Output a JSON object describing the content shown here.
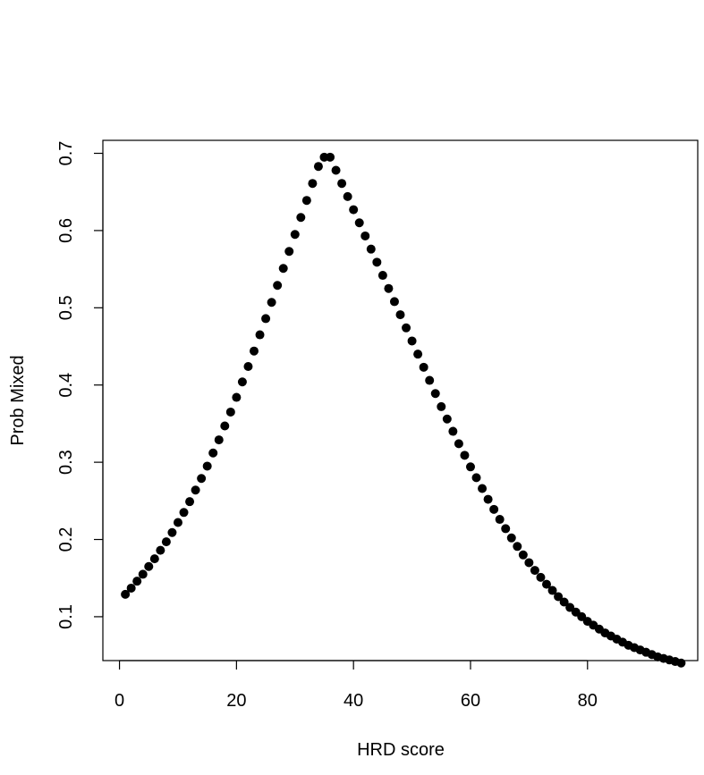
{
  "chart_data": {
    "type": "scatter",
    "title": "",
    "xlabel": "HRD score",
    "ylabel": "Prob Mixed",
    "xlim": [
      -2.84,
      98.84
    ],
    "ylim": [
      0.0432,
      0.7168
    ],
    "xticks": [
      0,
      20,
      40,
      60,
      80
    ],
    "xtick_labels": [
      "0",
      "20",
      "40",
      "60",
      "80"
    ],
    "yticks": [
      0.1,
      0.2,
      0.3,
      0.4,
      0.5,
      0.6,
      0.7
    ],
    "ytick_labels": [
      "0.1",
      "0.2",
      "0.3",
      "0.4",
      "0.5",
      "0.6",
      "0.7"
    ],
    "grid": false,
    "legend": "none",
    "marker_color": "#000000",
    "x": [
      1,
      2,
      3,
      4,
      5,
      6,
      7,
      8,
      9,
      10,
      11,
      12,
      13,
      14,
      15,
      16,
      17,
      18,
      19,
      20,
      21,
      22,
      23,
      24,
      25,
      26,
      27,
      28,
      29,
      30,
      31,
      32,
      33,
      34,
      35,
      36,
      37,
      38,
      39,
      40,
      41,
      42,
      43,
      44,
      45,
      46,
      47,
      48,
      49,
      50,
      51,
      52,
      53,
      54,
      55,
      56,
      57,
      58,
      59,
      60,
      61,
      62,
      63,
      64,
      65,
      66,
      67,
      68,
      69,
      70,
      71,
      72,
      73,
      74,
      75,
      76,
      77,
      78,
      79,
      80,
      81,
      82,
      83,
      84,
      85,
      86,
      87,
      88,
      89,
      90,
      91,
      92,
      93,
      94,
      95,
      96
    ],
    "y": [
      0.129,
      0.137,
      0.146,
      0.155,
      0.165,
      0.175,
      0.186,
      0.197,
      0.209,
      0.222,
      0.235,
      0.249,
      0.264,
      0.279,
      0.295,
      0.312,
      0.329,
      0.347,
      0.365,
      0.384,
      0.404,
      0.424,
      0.444,
      0.465,
      0.486,
      0.507,
      0.529,
      0.551,
      0.573,
      0.595,
      0.617,
      0.639,
      0.661,
      0.683,
      0.695,
      0.695,
      0.678,
      0.661,
      0.644,
      0.627,
      0.61,
      0.593,
      0.576,
      0.559,
      0.542,
      0.525,
      0.508,
      0.491,
      0.474,
      0.457,
      0.44,
      0.423,
      0.406,
      0.389,
      0.372,
      0.356,
      0.34,
      0.324,
      0.309,
      0.294,
      0.28,
      0.266,
      0.252,
      0.239,
      0.226,
      0.214,
      0.202,
      0.191,
      0.18,
      0.17,
      0.16,
      0.151,
      0.142,
      0.134,
      0.126,
      0.119,
      0.112,
      0.106,
      0.1,
      0.094,
      0.089,
      0.084,
      0.079,
      0.075,
      0.071,
      0.067,
      0.063,
      0.06,
      0.057,
      0.054,
      0.051,
      0.048,
      0.046,
      0.044,
      0.042,
      0.04
    ]
  }
}
